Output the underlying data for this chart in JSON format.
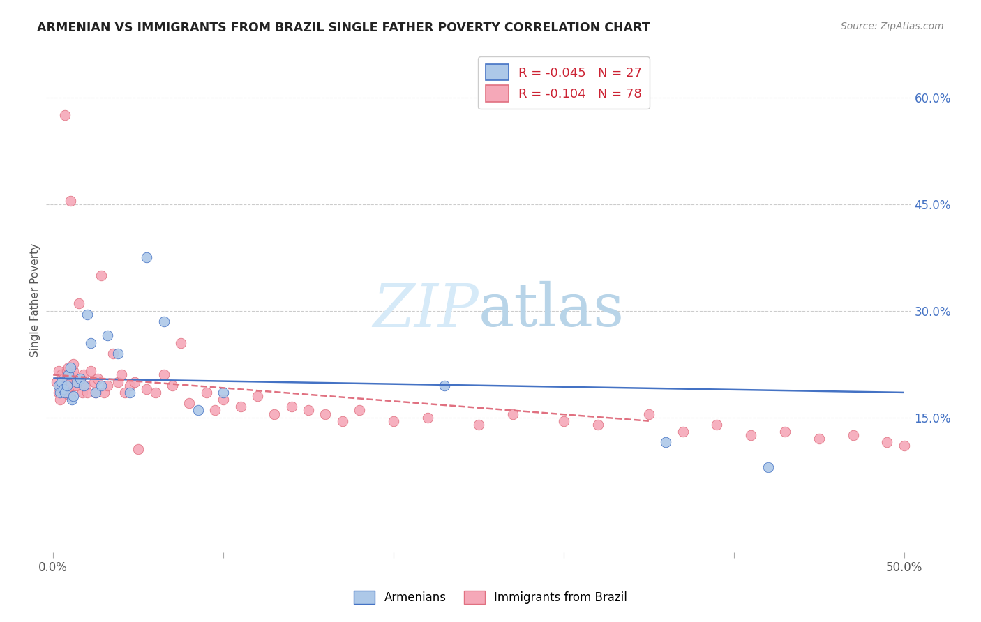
{
  "title": "ARMENIAN VS IMMIGRANTS FROM BRAZIL SINGLE FATHER POVERTY CORRELATION CHART",
  "source": "Source: ZipAtlas.com",
  "ylabel": "Single Father Poverty",
  "xlim": [
    -0.004,
    0.504
  ],
  "ylim": [
    -0.04,
    0.67
  ],
  "x_ticks": [
    0.0,
    0.1,
    0.2,
    0.3,
    0.4,
    0.5
  ],
  "x_tick_labels": [
    "0.0%",
    "",
    "",
    "",
    "",
    "50.0%"
  ],
  "y_ticks_right": [
    0.15,
    0.3,
    0.45,
    0.6
  ],
  "y_tick_labels_right": [
    "15.0%",
    "30.0%",
    "45.0%",
    "60.0%"
  ],
  "legend_r_armenian": "-0.045",
  "legend_n_armenian": "27",
  "legend_r_brazil": "-0.104",
  "legend_n_brazil": "78",
  "armenian_color": "#adc8e8",
  "brazil_color": "#f5a8b8",
  "armenian_line_color": "#4472c4",
  "brazil_line_color": "#e07080",
  "background_color": "#ffffff",
  "watermark_color": "#d6eaf8",
  "armenians_x": [
    0.003,
    0.004,
    0.005,
    0.006,
    0.007,
    0.008,
    0.009,
    0.01,
    0.011,
    0.012,
    0.014,
    0.016,
    0.018,
    0.02,
    0.022,
    0.025,
    0.028,
    0.032,
    0.038,
    0.045,
    0.055,
    0.065,
    0.085,
    0.1,
    0.23,
    0.36,
    0.42
  ],
  "armenians_y": [
    0.195,
    0.185,
    0.2,
    0.19,
    0.185,
    0.195,
    0.21,
    0.22,
    0.175,
    0.18,
    0.2,
    0.205,
    0.195,
    0.295,
    0.255,
    0.185,
    0.195,
    0.265,
    0.24,
    0.185,
    0.375,
    0.285,
    0.16,
    0.185,
    0.195,
    0.115,
    0.08
  ],
  "brazil_x": [
    0.002,
    0.003,
    0.003,
    0.004,
    0.004,
    0.005,
    0.005,
    0.006,
    0.006,
    0.007,
    0.007,
    0.008,
    0.008,
    0.008,
    0.009,
    0.009,
    0.01,
    0.01,
    0.011,
    0.011,
    0.012,
    0.012,
    0.013,
    0.014,
    0.015,
    0.016,
    0.017,
    0.018,
    0.019,
    0.02,
    0.022,
    0.024,
    0.026,
    0.028,
    0.03,
    0.032,
    0.035,
    0.038,
    0.04,
    0.042,
    0.045,
    0.048,
    0.05,
    0.055,
    0.06,
    0.065,
    0.07,
    0.075,
    0.08,
    0.09,
    0.095,
    0.1,
    0.11,
    0.12,
    0.13,
    0.14,
    0.15,
    0.16,
    0.17,
    0.18,
    0.2,
    0.22,
    0.25,
    0.27,
    0.3,
    0.32,
    0.35,
    0.37,
    0.39,
    0.41,
    0.43,
    0.45,
    0.47,
    0.49,
    0.5,
    0.008,
    0.012,
    0.025
  ],
  "brazil_y": [
    0.2,
    0.215,
    0.185,
    0.195,
    0.175,
    0.21,
    0.19,
    0.2,
    0.205,
    0.575,
    0.185,
    0.195,
    0.215,
    0.205,
    0.22,
    0.19,
    0.455,
    0.18,
    0.2,
    0.21,
    0.195,
    0.215,
    0.2,
    0.195,
    0.31,
    0.205,
    0.185,
    0.21,
    0.195,
    0.185,
    0.215,
    0.2,
    0.205,
    0.35,
    0.185,
    0.195,
    0.24,
    0.2,
    0.21,
    0.185,
    0.195,
    0.2,
    0.105,
    0.19,
    0.185,
    0.21,
    0.195,
    0.255,
    0.17,
    0.185,
    0.16,
    0.175,
    0.165,
    0.18,
    0.155,
    0.165,
    0.16,
    0.155,
    0.145,
    0.16,
    0.145,
    0.15,
    0.14,
    0.155,
    0.145,
    0.14,
    0.155,
    0.13,
    0.14,
    0.125,
    0.13,
    0.12,
    0.125,
    0.115,
    0.11,
    0.2,
    0.225,
    0.185
  ],
  "arm_line_x0": 0.0,
  "arm_line_x1": 0.5,
  "arm_line_y0": 0.205,
  "arm_line_y1": 0.185,
  "bra_line_x0": 0.0,
  "bra_line_x1": 0.35,
  "bra_line_y0": 0.21,
  "bra_line_y1": 0.145
}
